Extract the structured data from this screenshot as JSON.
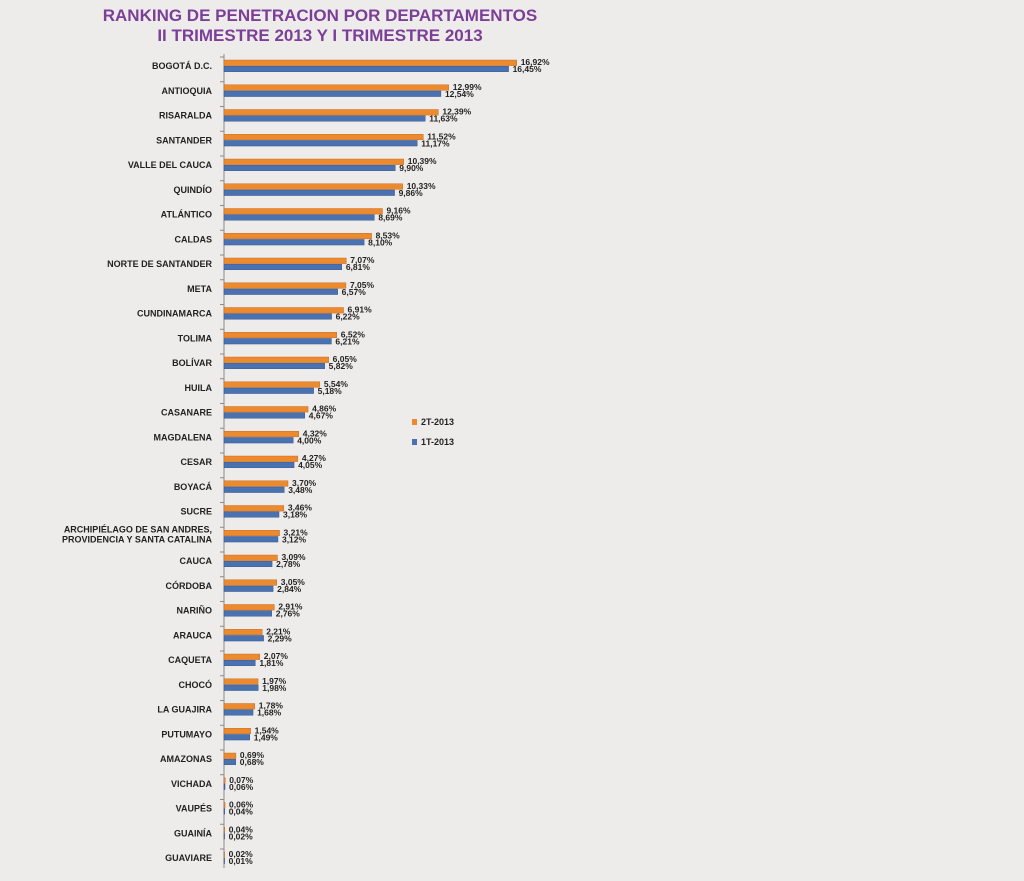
{
  "chart_data": {
    "type": "bar",
    "orientation": "horizontal",
    "title": [
      "RANKING DE PENETRACION POR DEPARTAMENTOS",
      "II TRIMESTRE 2013 Y I TRIMESTRE 2013"
    ],
    "categories": [
      [
        "BOGOTÁ D.C."
      ],
      [
        "ANTIOQUIA"
      ],
      [
        "RISARALDA"
      ],
      [
        "SANTANDER"
      ],
      [
        "VALLE DEL CAUCA"
      ],
      [
        "QUINDÍO"
      ],
      [
        "ATLÁNTICO"
      ],
      [
        "CALDAS"
      ],
      [
        "NORTE DE SANTANDER"
      ],
      [
        "META"
      ],
      [
        "CUNDINAMARCA"
      ],
      [
        "TOLIMA"
      ],
      [
        "BOLÍVAR"
      ],
      [
        "HUILA"
      ],
      [
        "CASANARE"
      ],
      [
        "MAGDALENA"
      ],
      [
        "CESAR"
      ],
      [
        "BOYACÁ"
      ],
      [
        "SUCRE"
      ],
      [
        "ARCHIPIÉLAGO DE SAN ANDRES,",
        "PROVIDENCIA Y SANTA CATALINA"
      ],
      [
        "CAUCA"
      ],
      [
        "CÓRDOBA"
      ],
      [
        "NARIÑO"
      ],
      [
        "ARAUCA"
      ],
      [
        "CAQUETA"
      ],
      [
        "CHOCÓ"
      ],
      [
        "LA GUAJIRA"
      ],
      [
        "PUTUMAYO"
      ],
      [
        "AMAZONAS"
      ],
      [
        "VICHADA"
      ],
      [
        "VAUPÉS"
      ],
      [
        "GUAINÍA"
      ],
      [
        "GUAVIARE"
      ]
    ],
    "series": [
      {
        "name": "2T-2013",
        "color": "#ee8a2e",
        "values": [
          16.92,
          12.99,
          12.39,
          11.52,
          10.39,
          10.33,
          9.16,
          8.53,
          7.07,
          7.05,
          6.91,
          6.52,
          6.05,
          5.54,
          4.86,
          4.32,
          4.27,
          3.7,
          3.46,
          3.21,
          3.09,
          3.05,
          2.91,
          2.21,
          2.07,
          1.97,
          1.78,
          1.54,
          0.69,
          0.07,
          0.06,
          0.04,
          0.02
        ],
        "labels": [
          "16,92%",
          "12,99%",
          "12,39%",
          "11,52%",
          "10,39%",
          "10,33%",
          "9,16%",
          "8,53%",
          "7,07%",
          "7,05%",
          "6,91%",
          "6,52%",
          "6,05%",
          "5,54%",
          "4,86%",
          "4,32%",
          "4,27%",
          "3,70%",
          "3,46%",
          "3,21%",
          "3,09%",
          "3,05%",
          "2,91%",
          "2,21%",
          "2,07%",
          "1,97%",
          "1,78%",
          "1,54%",
          "0,69%",
          "0,07%",
          "0,06%",
          "0,04%",
          "0,02%"
        ]
      },
      {
        "name": "1T-2013",
        "color": "#4a72b0",
        "values": [
          16.45,
          12.54,
          11.63,
          11.17,
          9.9,
          9.86,
          8.69,
          8.1,
          6.81,
          6.57,
          6.22,
          6.21,
          5.82,
          5.18,
          4.67,
          4.0,
          4.05,
          3.48,
          3.18,
          3.12,
          2.78,
          2.84,
          2.76,
          2.29,
          1.81,
          1.98,
          1.68,
          1.49,
          0.68,
          0.06,
          0.04,
          0.02,
          0.01
        ],
        "labels": [
          "16,45%",
          "12,54%",
          "11,63%",
          "11,17%",
          "9,90%",
          "9,86%",
          "8,69%",
          "8,10%",
          "6,81%",
          "6,57%",
          "6,22%",
          "6,21%",
          "5,82%",
          "5,18%",
          "4,67%",
          "4,00%",
          "4,05%",
          "3,48%",
          "3,18%",
          "3,12%",
          "2,78%",
          "2,84%",
          "2,76%",
          "2,29%",
          "1,81%",
          "1,98%",
          "1,68%",
          "1,49%",
          "0,68%",
          "0,06%",
          "0,04%",
          "0,02%",
          "0,01%"
        ]
      }
    ],
    "xlim": [
      0,
      17
    ],
    "legend": "right",
    "grid": false
  }
}
